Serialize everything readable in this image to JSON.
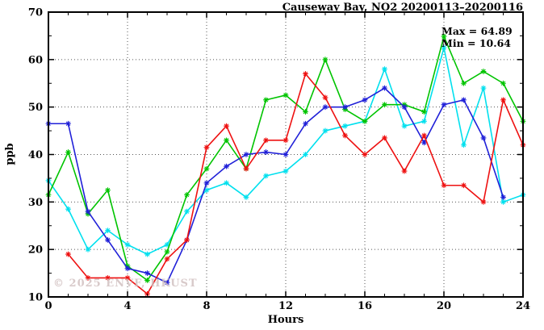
{
  "title": "Causeway Bay, NO2 20200113–20200116",
  "annotation": {
    "max_label": "Max = 64.89",
    "min_label": "Min = 10.64"
  },
  "watermark": "© 2025 ENVF, HKUST",
  "axes": {
    "xlabel": "Hours",
    "ylabel": "ppb",
    "x_ticks": [
      "0",
      "4",
      "8",
      "12",
      "16",
      "20",
      "24"
    ],
    "y_ticks": [
      "10",
      "20",
      "30",
      "40",
      "50",
      "60",
      "70"
    ]
  },
  "chart_data": {
    "type": "line",
    "title": "Causeway Bay, NO2 20200113–20200116",
    "xlabel": "Hours",
    "ylabel": "ppb",
    "xlim": [
      0,
      24
    ],
    "ylim": [
      10,
      70
    ],
    "x_major_ticks": [
      0,
      4,
      8,
      12,
      16,
      20,
      24
    ],
    "y_major_ticks": [
      10,
      20,
      30,
      40,
      50,
      60,
      70
    ],
    "x_minor_step": 1,
    "y_minor_step": 5,
    "grid": true,
    "legend_position": "none",
    "marker": "asterisk",
    "stat_max": 64.89,
    "stat_min": 10.64,
    "x": [
      0,
      1,
      2,
      3,
      4,
      5,
      6,
      7,
      8,
      9,
      10,
      11,
      12,
      13,
      14,
      15,
      16,
      17,
      18,
      19,
      20,
      21,
      22,
      23,
      24
    ],
    "series": [
      {
        "name": "cyan",
        "color": "#00e0ee",
        "values": [
          34.5,
          28.5,
          20,
          24,
          21,
          19,
          21,
          28,
          32.5,
          34,
          31,
          35.5,
          36.5,
          40,
          45,
          46,
          47,
          58,
          46,
          47,
          62.5,
          42,
          54,
          30,
          31.5
        ]
      },
      {
        "name": "green",
        "color": "#00c400",
        "values": [
          31.5,
          40.5,
          27.5,
          32.5,
          16.5,
          13.5,
          19.5,
          31.5,
          37,
          43,
          37,
          51.5,
          52.5,
          49,
          60,
          49.5,
          47,
          50.5,
          50.5,
          49,
          64.89,
          55,
          57.5,
          55,
          47
        ]
      },
      {
        "name": "blue",
        "color": "#2020d8",
        "values": [
          46.5,
          46.5,
          28,
          22,
          16,
          15,
          13,
          22,
          34,
          37.5,
          40,
          40.5,
          40,
          46.5,
          50,
          50,
          51.5,
          54,
          50,
          42.5,
          50.5,
          51.5,
          43.5,
          31,
          null
        ]
      },
      {
        "name": "red",
        "color": "#ee1111",
        "values": [
          null,
          19,
          14,
          14,
          14,
          10.64,
          18,
          22,
          41.5,
          46,
          37,
          43,
          43,
          57,
          52,
          44,
          40,
          43.5,
          36.5,
          44,
          33.5,
          33.5,
          30,
          51.5,
          42
        ]
      }
    ]
  }
}
